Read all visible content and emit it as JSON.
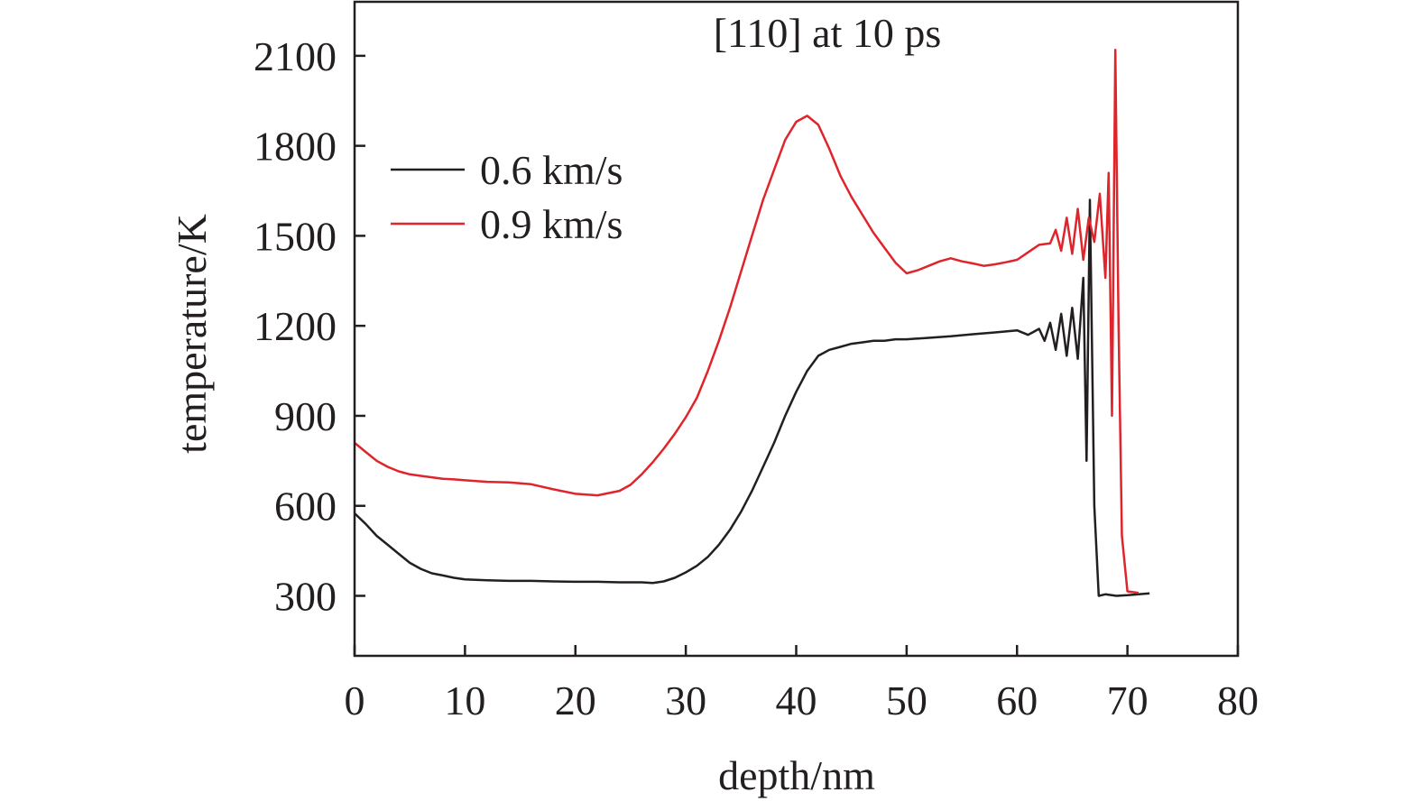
{
  "chart_data": {
    "type": "line",
    "title": "[110] at 10 ps",
    "xlabel": "depth/nm",
    "ylabel": "temperature/K",
    "xlim": [
      0,
      80
    ],
    "ylim": [
      100,
      2280
    ],
    "xticks": [
      0,
      10,
      20,
      30,
      40,
      50,
      60,
      70,
      80
    ],
    "yticks": [
      300,
      600,
      900,
      1200,
      1500,
      1800,
      2100
    ],
    "grid": false,
    "legend_position": "upper-left",
    "series": [
      {
        "name": "0.6 km/s",
        "color": "#231f20",
        "points": [
          [
            0,
            575
          ],
          [
            1,
            540
          ],
          [
            2,
            500
          ],
          [
            3,
            470
          ],
          [
            4,
            440
          ],
          [
            5,
            410
          ],
          [
            6,
            390
          ],
          [
            7,
            375
          ],
          [
            8,
            368
          ],
          [
            9,
            360
          ],
          [
            10,
            355
          ],
          [
            12,
            352
          ],
          [
            14,
            350
          ],
          [
            16,
            350
          ],
          [
            18,
            348
          ],
          [
            20,
            347
          ],
          [
            22,
            347
          ],
          [
            24,
            345
          ],
          [
            26,
            345
          ],
          [
            27,
            343
          ],
          [
            28,
            348
          ],
          [
            29,
            360
          ],
          [
            30,
            378
          ],
          [
            31,
            400
          ],
          [
            32,
            430
          ],
          [
            33,
            470
          ],
          [
            34,
            520
          ],
          [
            35,
            580
          ],
          [
            36,
            650
          ],
          [
            37,
            730
          ],
          [
            38,
            810
          ],
          [
            39,
            900
          ],
          [
            40,
            980
          ],
          [
            41,
            1050
          ],
          [
            42,
            1100
          ],
          [
            43,
            1120
          ],
          [
            44,
            1130
          ],
          [
            45,
            1140
          ],
          [
            46,
            1145
          ],
          [
            47,
            1150
          ],
          [
            48,
            1150
          ],
          [
            49,
            1155
          ],
          [
            50,
            1155
          ],
          [
            52,
            1160
          ],
          [
            54,
            1165
          ],
          [
            56,
            1172
          ],
          [
            58,
            1178
          ],
          [
            60,
            1185
          ],
          [
            61,
            1170
          ],
          [
            62,
            1190
          ],
          [
            62.5,
            1150
          ],
          [
            63,
            1210
          ],
          [
            63.5,
            1120
          ],
          [
            64,
            1240
          ],
          [
            64.5,
            1100
          ],
          [
            65,
            1260
          ],
          [
            65.5,
            1090
          ],
          [
            66,
            1360
          ],
          [
            66.3,
            750
          ],
          [
            66.6,
            1620
          ],
          [
            67,
            600
          ],
          [
            67.4,
            300
          ],
          [
            68,
            305
          ],
          [
            69,
            300
          ],
          [
            70,
            302
          ],
          [
            71,
            305
          ],
          [
            72,
            308
          ]
        ]
      },
      {
        "name": "0.9 km/s",
        "color": "#e0242b",
        "points": [
          [
            0,
            810
          ],
          [
            1,
            780
          ],
          [
            2,
            750
          ],
          [
            3,
            730
          ],
          [
            4,
            715
          ],
          [
            5,
            705
          ],
          [
            6,
            700
          ],
          [
            7,
            695
          ],
          [
            8,
            690
          ],
          [
            9,
            688
          ],
          [
            10,
            685
          ],
          [
            12,
            680
          ],
          [
            14,
            678
          ],
          [
            16,
            672
          ],
          [
            18,
            655
          ],
          [
            20,
            640
          ],
          [
            22,
            635
          ],
          [
            24,
            650
          ],
          [
            25,
            670
          ],
          [
            26,
            705
          ],
          [
            27,
            745
          ],
          [
            28,
            790
          ],
          [
            29,
            840
          ],
          [
            30,
            895
          ],
          [
            31,
            960
          ],
          [
            32,
            1050
          ],
          [
            33,
            1150
          ],
          [
            34,
            1260
          ],
          [
            35,
            1380
          ],
          [
            36,
            1500
          ],
          [
            37,
            1620
          ],
          [
            38,
            1720
          ],
          [
            39,
            1820
          ],
          [
            40,
            1880
          ],
          [
            41,
            1900
          ],
          [
            42,
            1870
          ],
          [
            43,
            1790
          ],
          [
            44,
            1700
          ],
          [
            45,
            1630
          ],
          [
            46,
            1570
          ],
          [
            47,
            1510
          ],
          [
            48,
            1460
          ],
          [
            49,
            1410
          ],
          [
            50,
            1375
          ],
          [
            51,
            1385
          ],
          [
            52,
            1400
          ],
          [
            53,
            1415
          ],
          [
            54,
            1425
          ],
          [
            55,
            1415
          ],
          [
            56,
            1408
          ],
          [
            57,
            1400
          ],
          [
            58,
            1405
          ],
          [
            59,
            1412
          ],
          [
            60,
            1420
          ],
          [
            61,
            1445
          ],
          [
            62,
            1470
          ],
          [
            63,
            1475
          ],
          [
            63.5,
            1520
          ],
          [
            64,
            1450
          ],
          [
            64.5,
            1560
          ],
          [
            65,
            1440
          ],
          [
            65.5,
            1590
          ],
          [
            66,
            1420
          ],
          [
            66.5,
            1560
          ],
          [
            67,
            1480
          ],
          [
            67.5,
            1640
          ],
          [
            68,
            1360
          ],
          [
            68.3,
            1710
          ],
          [
            68.6,
            900
          ],
          [
            68.9,
            2120
          ],
          [
            69.2,
            1200
          ],
          [
            69.5,
            500
          ],
          [
            70,
            315
          ],
          [
            71,
            310
          ]
        ]
      }
    ]
  }
}
